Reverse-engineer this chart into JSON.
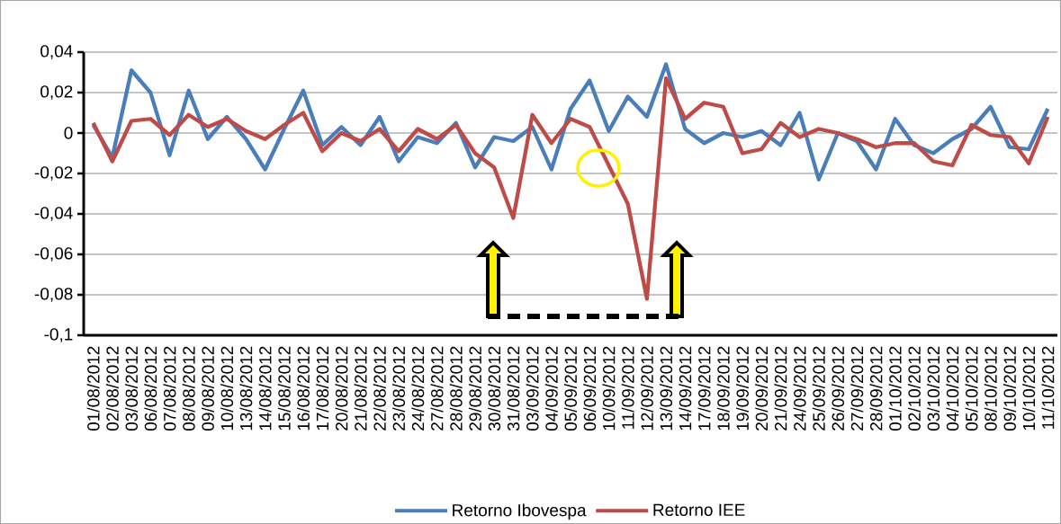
{
  "chart_data": {
    "type": "line",
    "categories": [
      "01/08/2012",
      "02/08/2012",
      "03/08/2012",
      "06/08/2012",
      "07/08/2012",
      "08/08/2012",
      "09/08/2012",
      "10/08/2012",
      "13/08/2012",
      "14/08/2012",
      "15/08/2012",
      "16/08/2012",
      "17/08/2012",
      "20/08/2012",
      "21/08/2012",
      "22/08/2012",
      "23/08/2012",
      "24/08/2012",
      "27/08/2012",
      "28/08/2012",
      "29/08/2012",
      "30/08/2012",
      "31/08/2012",
      "03/09/2012",
      "04/09/2012",
      "05/09/2012",
      "06/09/2012",
      "10/09/2012",
      "11/09/2012",
      "12/09/2012",
      "13/09/2012",
      "14/09/2012",
      "17/09/2012",
      "18/09/2012",
      "19/09/2012",
      "20/09/2012",
      "21/09/2012",
      "24/09/2012",
      "25/09/2012",
      "26/09/2012",
      "27/09/2012",
      "28/09/2012",
      "01/10/2012",
      "02/10/2012",
      "03/10/2012",
      "04/10/2012",
      "05/10/2012",
      "08/10/2012",
      "09/10/2012",
      "10/10/2012",
      "11/10/2012"
    ],
    "series": [
      {
        "name": "Retorno Ibovespa",
        "color": "#4a7ebb",
        "values": [
          0.004,
          -0.012,
          0.031,
          0.02,
          -0.011,
          0.021,
          -0.003,
          0.008,
          -0.003,
          -0.018,
          0.002,
          0.021,
          -0.006,
          0.003,
          -0.006,
          0.008,
          -0.014,
          -0.002,
          -0.005,
          0.005,
          -0.017,
          -0.002,
          -0.004,
          0.003,
          -0.018,
          0.012,
          0.026,
          0.001,
          0.018,
          0.008,
          0.034,
          0.002,
          -0.005,
          0.0,
          -0.002,
          0.001,
          -0.006,
          0.01,
          -0.023,
          0.0,
          -0.004,
          -0.018,
          0.007,
          -0.006,
          -0.01,
          -0.003,
          0.002,
          0.013,
          -0.007,
          -0.008,
          0.012
        ]
      },
      {
        "name": "Retorno IEE",
        "color": "#be4b48",
        "values": [
          0.005,
          -0.014,
          0.006,
          0.007,
          -0.001,
          0.009,
          0.003,
          0.007,
          0.001,
          -0.003,
          0.004,
          0.01,
          -0.009,
          0.0,
          -0.004,
          0.002,
          -0.009,
          0.002,
          -0.003,
          0.004,
          -0.01,
          -0.017,
          -0.042,
          0.009,
          -0.005,
          0.007,
          0.003,
          -0.016,
          -0.035,
          -0.082,
          0.027,
          0.007,
          0.015,
          0.013,
          -0.01,
          -0.008,
          0.005,
          -0.002,
          0.002,
          0.0,
          -0.003,
          -0.007,
          -0.005,
          -0.005,
          -0.014,
          -0.016,
          0.004,
          -0.001,
          -0.002,
          -0.015,
          0.008
        ]
      }
    ],
    "ylim": [
      -0.1,
      0.04
    ],
    "yticks": [
      {
        "value": -0.1,
        "label": "-0,1"
      },
      {
        "value": -0.08,
        "label": "-0,08"
      },
      {
        "value": -0.06,
        "label": "-0,06"
      },
      {
        "value": -0.04,
        "label": "-0,04"
      },
      {
        "value": -0.02,
        "label": "-0,02"
      },
      0,
      {
        "value": 0.02,
        "label": "0,02"
      },
      {
        "value": 0.04,
        "label": "0,04"
      }
    ],
    "grid": "y",
    "legend": "bottom",
    "marker": "none",
    "line_style": "solid"
  }
}
